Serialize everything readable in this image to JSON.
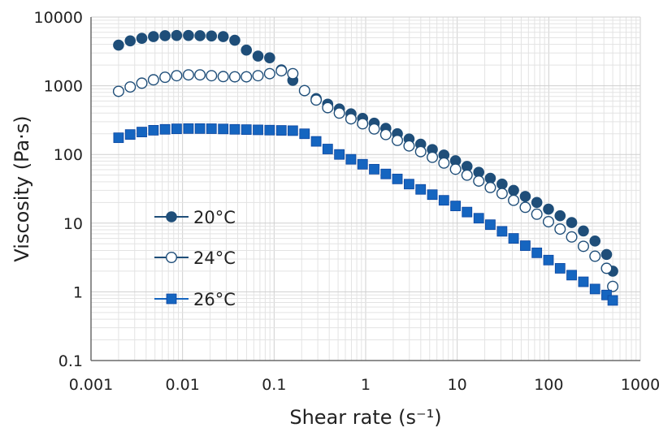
{
  "chart_data": {
    "type": "scatter",
    "title": "",
    "xlabel": "Shear rate (s⁻¹)",
    "ylabel": "Viscosity (Pa·s)",
    "x_scale": "log",
    "y_scale": "log",
    "xlim": [
      0.001,
      1000
    ],
    "ylim": [
      0.1,
      10000
    ],
    "x_tick_labels": [
      "0.001",
      "0.01",
      "0.1",
      "1",
      "10",
      "100",
      "1000"
    ],
    "y_tick_labels": [
      "0.1",
      "1",
      "10",
      "100",
      "1000",
      "10000"
    ],
    "grid": true,
    "legend_position": "left-center",
    "series": [
      {
        "name": "20°C",
        "marker": "filled-circle",
        "color": "#1f4e79",
        "x": [
          0.002,
          0.00268,
          0.00359,
          0.00481,
          0.00644,
          0.00862,
          0.0116,
          0.0155,
          0.0207,
          0.0278,
          0.0372,
          0.0498,
          0.0667,
          0.0894,
          0.12,
          0.16,
          0.215,
          0.288,
          0.385,
          0.516,
          0.691,
          0.926,
          1.24,
          1.66,
          2.22,
          2.98,
          3.99,
          5.35,
          7.16,
          9.59,
          12.8,
          17.2,
          23.0,
          30.9,
          41.3,
          55.4,
          74.1,
          99.3,
          133,
          178,
          239,
          320,
          428,
          500
        ],
        "y": [
          3900,
          4500,
          4900,
          5200,
          5350,
          5400,
          5400,
          5350,
          5300,
          5200,
          4600,
          3300,
          2700,
          2550,
          1700,
          1200,
          850,
          650,
          540,
          460,
          390,
          335,
          285,
          240,
          200,
          168,
          141,
          118,
          98,
          81,
          67,
          55,
          45,
          37,
          30,
          24.5,
          20,
          16,
          12.8,
          10.2,
          7.7,
          5.5,
          3.5,
          2.0
        ]
      },
      {
        "name": "24°C",
        "marker": "open-circle",
        "color": "#1f4e79",
        "x": [
          0.002,
          0.00268,
          0.00359,
          0.00481,
          0.00644,
          0.00862,
          0.0116,
          0.0155,
          0.0207,
          0.0278,
          0.0372,
          0.0498,
          0.0667,
          0.0894,
          0.12,
          0.16,
          0.215,
          0.288,
          0.385,
          0.516,
          0.691,
          0.926,
          1.24,
          1.66,
          2.22,
          2.98,
          3.99,
          5.35,
          7.16,
          9.59,
          12.8,
          17.2,
          23.0,
          30.9,
          41.3,
          55.4,
          74.1,
          99.3,
          133,
          178,
          239,
          320,
          428,
          500
        ],
        "y": [
          830,
          960,
          1090,
          1220,
          1330,
          1400,
          1440,
          1440,
          1400,
          1360,
          1350,
          1350,
          1400,
          1500,
          1650,
          1500,
          850,
          620,
          480,
          400,
          330,
          280,
          235,
          195,
          160,
          133,
          110,
          91,
          75,
          61,
          50,
          41,
          33,
          27,
          21.5,
          17,
          13.5,
          10.5,
          8.2,
          6.3,
          4.6,
          3.3,
          2.2,
          1.2
        ]
      },
      {
        "name": "26°C",
        "marker": "filled-square",
        "color": "#1565c0",
        "x": [
          0.002,
          0.00268,
          0.00359,
          0.00481,
          0.00644,
          0.00862,
          0.0116,
          0.0155,
          0.0207,
          0.0278,
          0.0372,
          0.0498,
          0.0667,
          0.0894,
          0.12,
          0.16,
          0.215,
          0.288,
          0.385,
          0.516,
          0.691,
          0.926,
          1.24,
          1.66,
          2.22,
          2.98,
          3.99,
          5.35,
          7.16,
          9.59,
          12.8,
          17.2,
          23.0,
          30.9,
          41.3,
          55.4,
          74.1,
          99.3,
          133,
          178,
          239,
          320,
          428,
          500
        ],
        "y": [
          175,
          195,
          212,
          225,
          232,
          236,
          238,
          238,
          237,
          235,
          232,
          230,
          228,
          226,
          224,
          222,
          200,
          155,
          120,
          100,
          85,
          72,
          61,
          52,
          44,
          37,
          31,
          26,
          21.5,
          17.8,
          14.5,
          11.8,
          9.5,
          7.6,
          6.0,
          4.7,
          3.7,
          2.9,
          2.2,
          1.75,
          1.4,
          1.1,
          0.9,
          0.75
        ]
      }
    ]
  }
}
